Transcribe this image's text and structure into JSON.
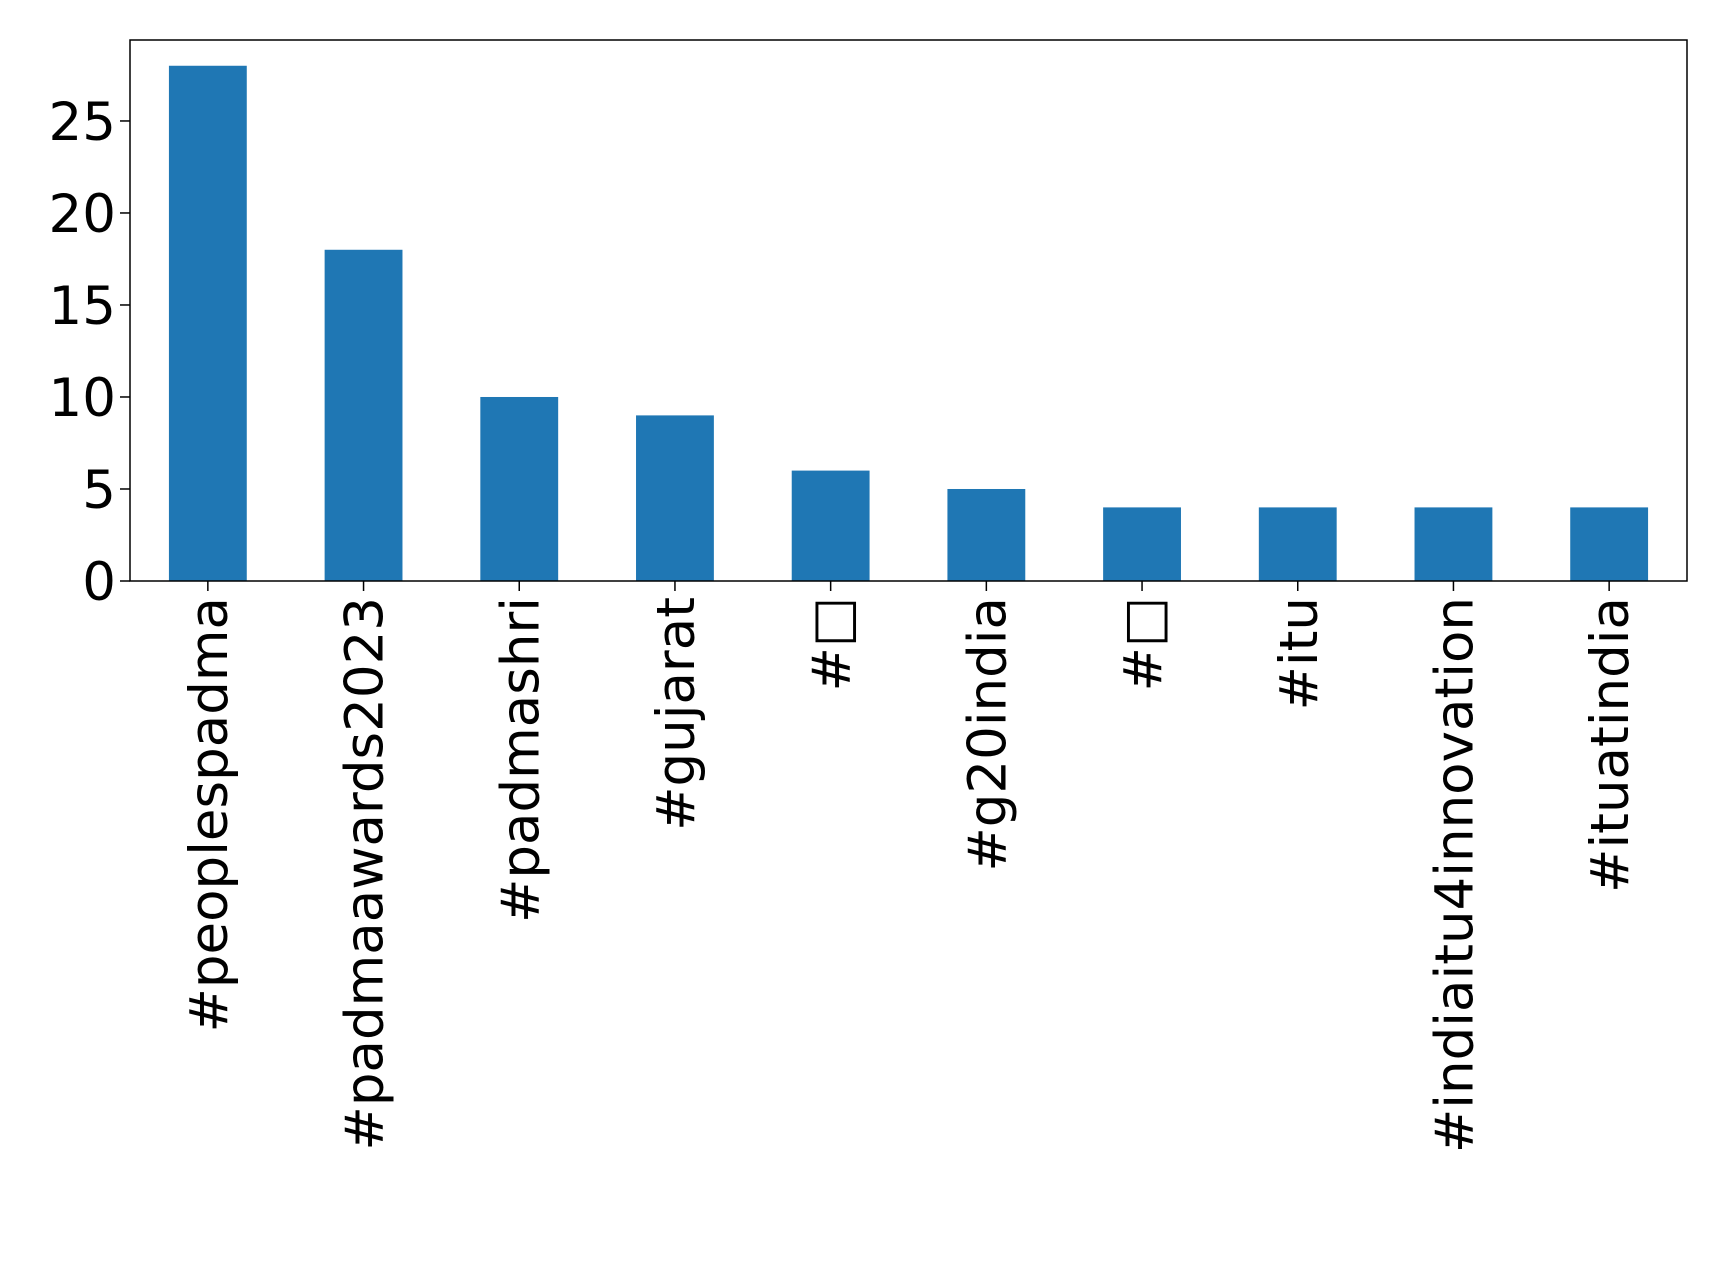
{
  "chart_data": {
    "type": "bar",
    "categories": [
      "#peoplespadma",
      "#padmaawards2023",
      "#padmashri",
      "#gujarat",
      "#□",
      "#g20india",
      "#□",
      "#itu",
      "#indiaitu4innovation",
      "#ituatindia"
    ],
    "values": [
      28,
      18,
      10,
      9,
      6,
      5,
      4,
      4,
      4,
      4
    ],
    "color": "#1f77b4",
    "ylim": [
      0,
      29.4
    ],
    "yticks": [
      0,
      5,
      10,
      15,
      20,
      25
    ],
    "grid": false
  }
}
